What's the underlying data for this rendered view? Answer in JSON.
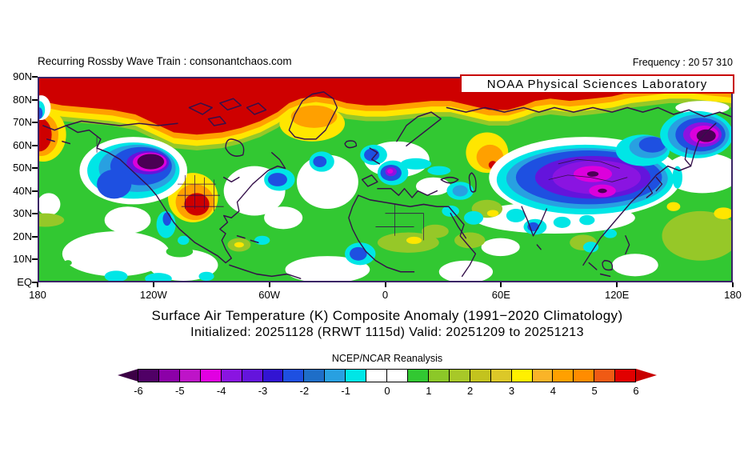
{
  "header": {
    "left": "Recurring Rossby Wave Train : consonantchaos.com",
    "right": "Frequency : 20 57 310"
  },
  "banner": {
    "label": "NOAA Physical Sciences Laboratory",
    "border_color": "#C80000"
  },
  "title": {
    "line1": "Surface Air Temperature (K) Composite Anomaly (1991−2020 Climatology)",
    "line2": "Initialized: 20251128 (RRWT 1115d) Valid: 20251209 to 20251213"
  },
  "map": {
    "y_ticks": [
      "90N",
      "80N",
      "70N",
      "60N",
      "50N",
      "40N",
      "30N",
      "20N",
      "10N",
      "EQ"
    ],
    "x_ticks": [
      "180",
      "120W",
      "60W",
      "0",
      "60E",
      "120E",
      "180"
    ],
    "frame_color": "#3A2466",
    "coastline_color": "#35104A",
    "near_zero_positive_color": "#32C832",
    "near_zero_negative_color": "#FFFFFF"
  },
  "colorbar": {
    "label": "NCEP/NCAR Reanalysis",
    "ticks": [
      "-6",
      "-5",
      "-4",
      "-3",
      "-2",
      "-1",
      "0",
      "1",
      "2",
      "3",
      "4",
      "5",
      "6"
    ],
    "left_arrow_color": "#3C0046",
    "right_arrow_color": "#C80000",
    "cells": [
      "#500066",
      "#8C00A8",
      "#BE14C8",
      "#E100E1",
      "#8A14E1",
      "#6414DC",
      "#3214D2",
      "#1E50E1",
      "#1E6EC8",
      "#28A0E1",
      "#00E6E6",
      "#FFFFFF",
      "#FFFFFF",
      "#32C832",
      "#8CC828",
      "#A8C828",
      "#C3C31E",
      "#DCC828",
      "#FFF000",
      "#FAB428",
      "#FFA000",
      "#FF8C00",
      "#F05A14",
      "#E10000"
    ]
  },
  "chart_data": {
    "type": "heatmap",
    "title": "Surface Air Temperature (K) Composite Anomaly (1991−2020 Climatology)",
    "subtitle": "Initialized: 20251128 (RRWT 1115d) Valid: 20251209 to 20251213",
    "source": "NCEP/NCAR Reanalysis",
    "units": "K",
    "projection": "cylindrical lat-lon",
    "xlabel_ticks": [
      "180",
      "120W",
      "60W",
      "0",
      "60E",
      "120E",
      "180"
    ],
    "ylabel_ticks": [
      "90N",
      "80N",
      "70N",
      "60N",
      "50N",
      "40N",
      "30N",
      "20N",
      "10N",
      "EQ"
    ],
    "lon_range_deg": [
      -180,
      180
    ],
    "lat_range_deg": [
      0,
      90
    ],
    "colorbar_levels_K": [
      -6,
      -5.5,
      -5,
      -4.5,
      -4,
      -3.5,
      -3,
      -2.5,
      -2,
      -1.5,
      -1,
      -0.5,
      0,
      0.5,
      1,
      1.5,
      2,
      2.5,
      3,
      3.5,
      4,
      4.5,
      5,
      5.5,
      6
    ],
    "colorbar_colors": [
      "#500066",
      "#8C00A8",
      "#BE14C8",
      "#E100E1",
      "#8A14E1",
      "#6414DC",
      "#3214D2",
      "#1E50E1",
      "#1E6EC8",
      "#28A0E1",
      "#00E6E6",
      "#FFFFFF",
      "#FFFFFF",
      "#32C832",
      "#8CC828",
      "#A8C828",
      "#C3C31E",
      "#DCC828",
      "#FFF000",
      "#FAB428",
      "#FFA000",
      "#FF8C00",
      "#F05A14",
      "#E10000"
    ],
    "anomaly_centers": [
      {
        "region": "Arctic cap 80N-90N (circumpolar band)",
        "approx_value_K": 6
      },
      {
        "region": "Northwest North America / British Columbia",
        "lon": -122,
        "lat": 52,
        "approx_value_K": -6
      },
      {
        "region": "South-central United States / Texas",
        "lon": -99,
        "lat": 34,
        "approx_value_K": 6
      },
      {
        "region": "Greenland",
        "lon": -38,
        "lat": 71,
        "approx_value_K": 4.5
      },
      {
        "region": "Western Russia",
        "lon": 54,
        "lat": 52,
        "approx_value_K": 6
      },
      {
        "region": "Central-East Asia (Mongolia/China)",
        "lon": 108,
        "lat": 46,
        "approx_value_K": -5.5
      },
      {
        "region": "Northeast Siberia",
        "lon": 165,
        "lat": 65,
        "approx_value_K": -6
      },
      {
        "region": "Western Europe / France",
        "lon": 3,
        "lat": 48,
        "approx_value_K": -4.5
      },
      {
        "region": "Tropics / oceans background",
        "approx_value_K": 0.5
      }
    ]
  }
}
